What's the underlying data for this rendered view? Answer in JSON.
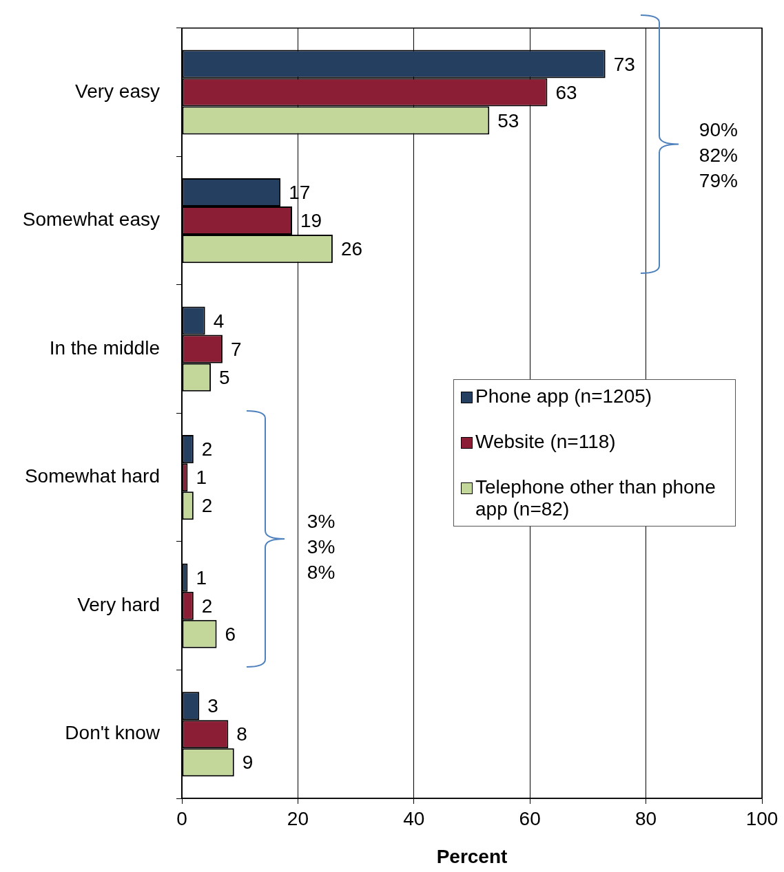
{
  "chart_data": {
    "type": "bar",
    "orientation": "horizontal",
    "xlabel": "Percent",
    "categories": [
      "Very easy",
      "Somewhat easy",
      "In the middle",
      "Somewhat hard",
      "Very hard",
      "Don't know"
    ],
    "series": [
      {
        "name": "Phone app (n=1205)",
        "color": "#243f60",
        "values": [
          73,
          17,
          4,
          2,
          1,
          3
        ]
      },
      {
        "name": "Website (n=118)",
        "color": "#8b1e35",
        "values": [
          63,
          19,
          7,
          1,
          2,
          8
        ]
      },
      {
        "name": "Telephone other than phone app (n=82)",
        "color": "#c4d79b",
        "values": [
          53,
          26,
          5,
          2,
          6,
          9
        ]
      }
    ],
    "xlim": [
      0,
      100
    ],
    "xticks": [
      0,
      20,
      40,
      60,
      80,
      100
    ],
    "grid": "x",
    "legend": "right",
    "data_labels": true,
    "annotations": [
      "90%\n82%\n79%",
      "3%\n3%\n8%"
    ]
  }
}
